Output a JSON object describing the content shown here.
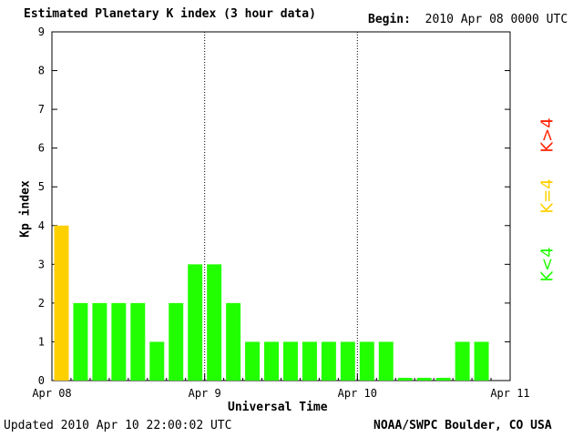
{
  "header": {
    "title": "Estimated Planetary K index (3 hour data)",
    "begin_label": "Begin:",
    "begin_value": "2010 Apr 08 0000 UTC"
  },
  "footer": {
    "updated_label": "Updated",
    "updated_value": "2010 Apr 10 22:00:02 UTC",
    "credit": "NOAA/SWPC Boulder, CO USA"
  },
  "legend": {
    "high": "K>4",
    "mid": "K=4",
    "low": "K<4"
  },
  "colors": {
    "low": "#22ff00",
    "mid": "#ffd000",
    "high": "#ff2200",
    "axis": "#000000"
  },
  "chart_data": {
    "type": "bar",
    "xlabel": "Universal Time",
    "ylabel": "Kp index",
    "ylim": [
      0,
      9
    ],
    "yticks": [
      0,
      1,
      2,
      3,
      4,
      5,
      6,
      7,
      8,
      9
    ],
    "xticks": [
      "Apr 08",
      "Apr 9",
      "Apr 10",
      "Apr 11"
    ],
    "bars_per_day": 8,
    "values": [
      4,
      2,
      2,
      2,
      2,
      1,
      2,
      3,
      3,
      2,
      1,
      1,
      1,
      1,
      1,
      1,
      1,
      1,
      0.07,
      0.07,
      0.07,
      1,
      1
    ]
  }
}
